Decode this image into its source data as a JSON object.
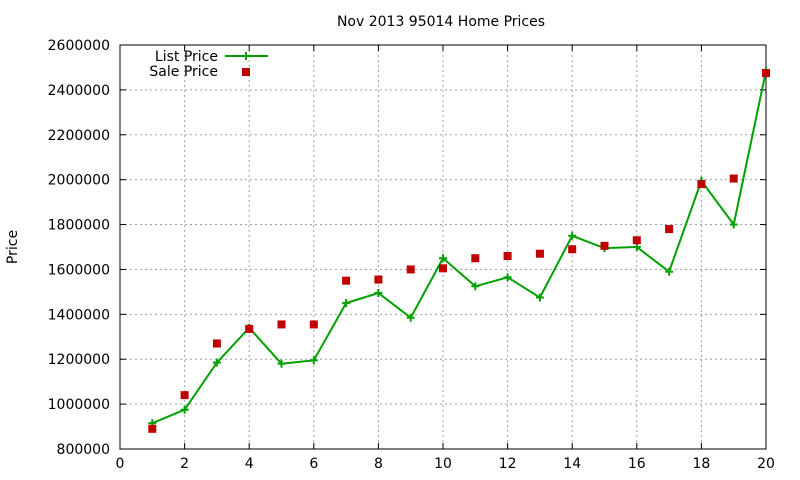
{
  "chart_data": {
    "type": "line",
    "title": "Nov 2013 95014 Home Prices",
    "xlabel": "",
    "ylabel": "Price",
    "xlim": [
      0,
      20
    ],
    "ylim": [
      800000,
      2600000
    ],
    "x_ticks": [
      0,
      2,
      4,
      6,
      8,
      10,
      12,
      14,
      16,
      18,
      20
    ],
    "y_ticks": [
      800000,
      1000000,
      1200000,
      1400000,
      1600000,
      1800000,
      2000000,
      2200000,
      2400000,
      2600000
    ],
    "grid": true,
    "legend_position": "top-left",
    "x": [
      1,
      2,
      3,
      4,
      5,
      6,
      7,
      8,
      9,
      10,
      11,
      12,
      13,
      14,
      15,
      16,
      17,
      18,
      19,
      20
    ],
    "series": [
      {
        "name": "List Price",
        "kind": "line-points",
        "color": "#00a000",
        "values": [
          915000,
          975000,
          1185000,
          1340000,
          1180000,
          1195000,
          1450000,
          1495000,
          1385000,
          1650000,
          1525000,
          1565000,
          1475000,
          1750000,
          1695000,
          1700000,
          1590000,
          1995000,
          1800000,
          2485000
        ]
      },
      {
        "name": "Sale Price",
        "kind": "points",
        "color": "#c00000",
        "values": [
          890000,
          1040000,
          1270000,
          1335000,
          1355000,
          1355000,
          1550000,
          1555000,
          1600000,
          1605000,
          1650000,
          1660000,
          1670000,
          1690000,
          1705000,
          1730000,
          1780000,
          1980000,
          2005000,
          2475000
        ]
      }
    ]
  }
}
